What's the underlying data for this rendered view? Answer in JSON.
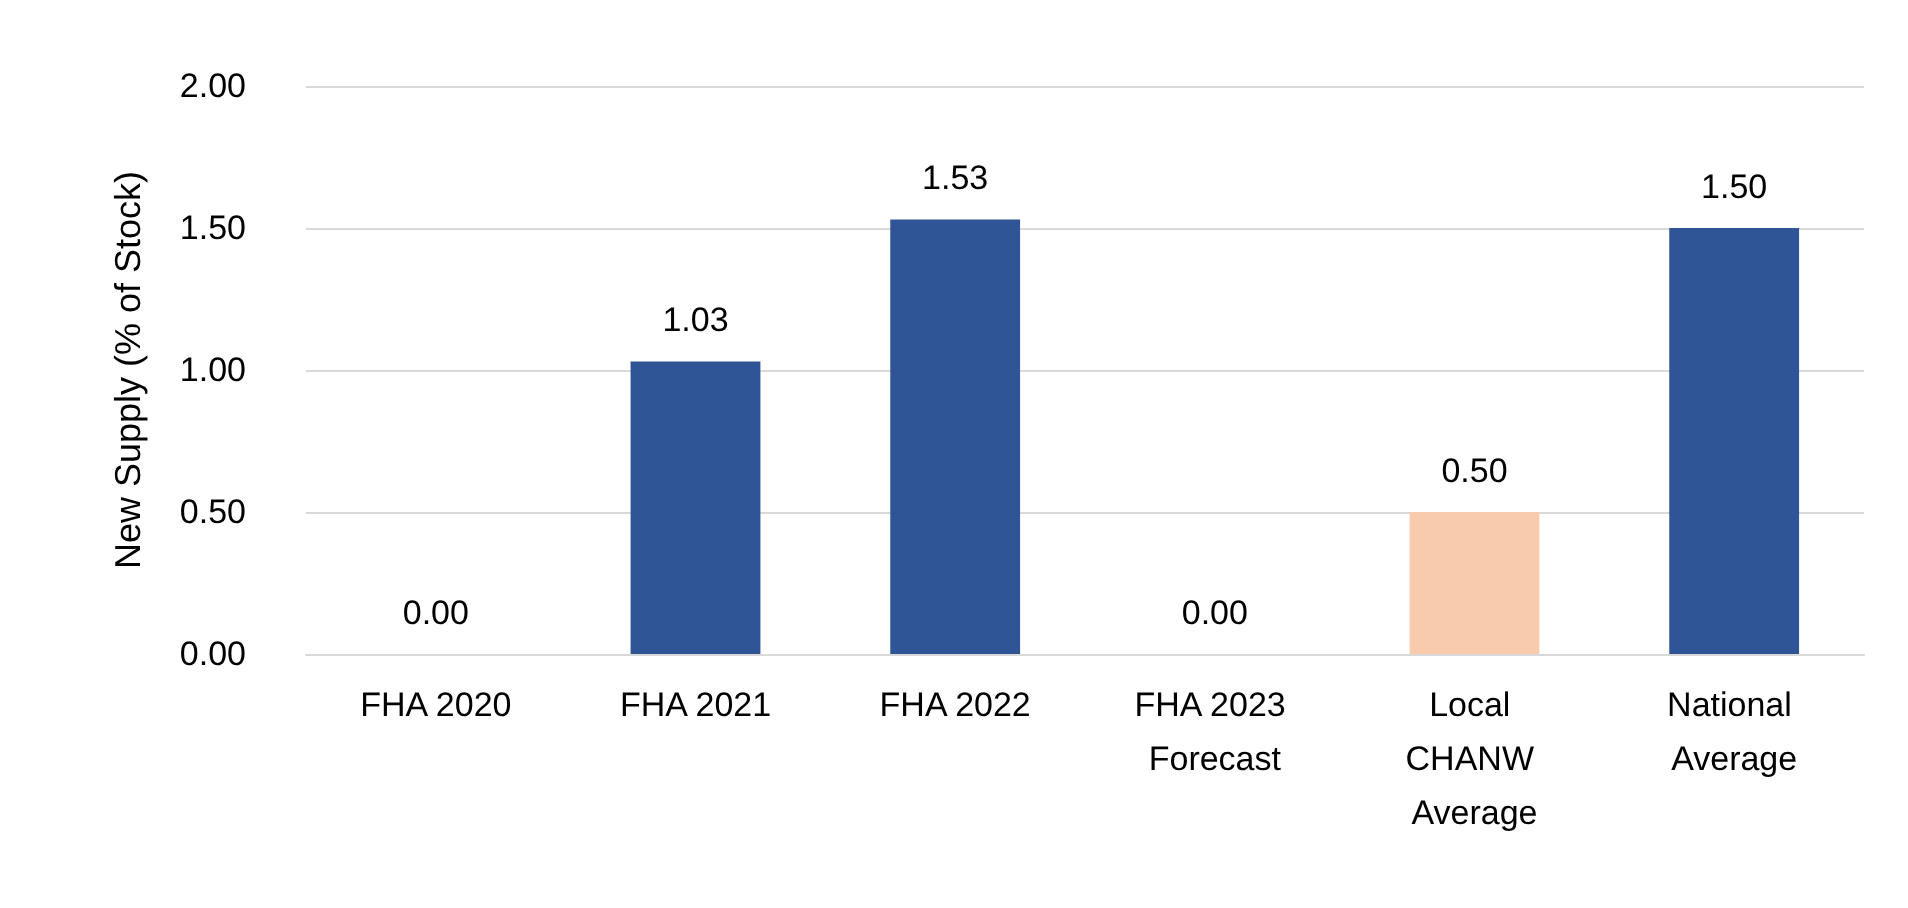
{
  "chart_data": {
    "type": "bar",
    "ylabel": "New Supply (% of Stock)",
    "categories": [
      "FHA 2020",
      "FHA 2021",
      "FHA 2022",
      "FHA 2023 Forecast",
      "Local CHANW Average",
      "National Average"
    ],
    "values": [
      0,
      1.03,
      1.53,
      0,
      0.5,
      1.5
    ],
    "colors": [
      "#2f5597",
      "#2f5597",
      "#2f5597",
      "#2f5597",
      "#f8cbad",
      "#2f5597"
    ],
    "value_labels": [
      "0.00",
      "1.03",
      "1.53",
      "0.00",
      "0.50",
      "1.50"
    ],
    "ylim": [
      0,
      2
    ],
    "yticks": [
      {
        "value": 0,
        "label": "0.00"
      },
      {
        "value": 0.5,
        "label": "0.50"
      },
      {
        "value": 1,
        "label": "1.00"
      },
      {
        "value": 1.5,
        "label": "1.50"
      },
      {
        "value": 2,
        "label": "2.00"
      }
    ],
    "grid": "y"
  }
}
